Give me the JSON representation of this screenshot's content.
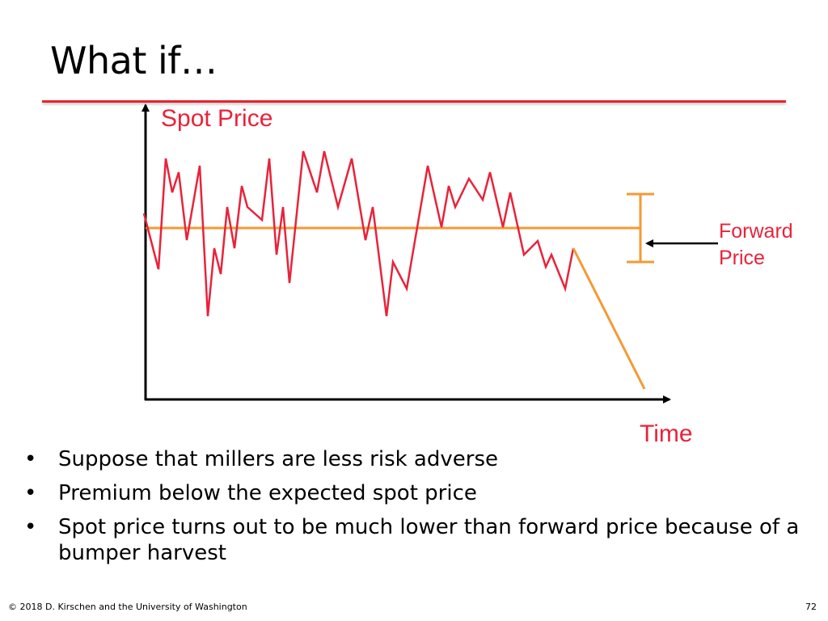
{
  "slide": {
    "title": "What if…",
    "bullets": [
      "Suppose that millers are less risk adverse",
      "Premium below the expected spot price",
      "Spot price turns out to be much lower than forward price because of a bumper harvest"
    ],
    "footer_left": "© 2018 D. Kirschen and the University of Washington",
    "page_number": "72"
  },
  "diagram": {
    "y_axis_label": "Spot Price",
    "x_axis_label": "Time",
    "forward_label_line1": "Forward",
    "forward_label_line2": "Price",
    "colors": {
      "spot_line": "#e8233a",
      "forward_line": "#f39a35",
      "axis": "#000000"
    }
  }
}
